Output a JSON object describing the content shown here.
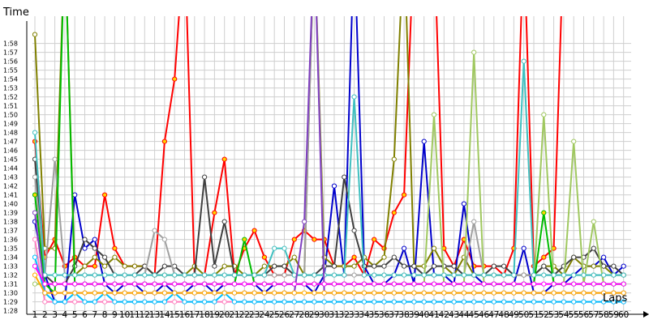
{
  "chart_data": {
    "type": "line",
    "title": "",
    "xlabel": "Laps",
    "ylabel": "Time",
    "x_range": [
      1,
      60
    ],
    "y_range_seconds": [
      88,
      119
    ],
    "y_tick_labels": [
      "1:28",
      "1:29",
      "1:30",
      "1:31",
      "1:32",
      "1:33",
      "1:34",
      "1:35",
      "1:36",
      "1:37",
      "1:38",
      "1:39",
      "1:40",
      "1:41",
      "1:42",
      "1:43",
      "1:44",
      "1:45",
      "1:46",
      "1:47",
      "1:48",
      "1:49",
      "1:50",
      "1:51",
      "1:52",
      "1:53",
      "1:54",
      "1:55",
      "1:56",
      "1:57",
      "1:58"
    ],
    "x_tick_labels": [
      "1",
      "2",
      "3",
      "4",
      "5",
      "6",
      "7",
      "8",
      "9",
      "10",
      "11",
      "12",
      "13",
      "14",
      "15",
      "16",
      "17",
      "18",
      "19",
      "20",
      "21",
      "22",
      "23",
      "24",
      "25",
      "26",
      "27",
      "28",
      "29",
      "30",
      "31",
      "32",
      "33",
      "34",
      "35",
      "36",
      "37",
      "38",
      "39",
      "40",
      "41",
      "42",
      "43",
      "44",
      "45",
      "46",
      "47",
      "48",
      "49",
      "50",
      "51",
      "52",
      "53",
      "54",
      "55",
      "56",
      "57",
      "58",
      "59",
      "60"
    ],
    "grid": true,
    "legend": "none",
    "series": [
      {
        "color": "#ff0000",
        "values": [
          107,
          94,
          96,
          93,
          94,
          93,
          93,
          101,
          95,
          93,
          93,
          93,
          92,
          107,
          114,
          130,
          92,
          92,
          99,
          105,
          92,
          95,
          97,
          94,
          92,
          92,
          96,
          97,
          96,
          96,
          93,
          93,
          94,
          92,
          96,
          95,
          99,
          101,
          130,
          130,
          130,
          95,
          93,
          96,
          93,
          93,
          93,
          92,
          95,
          130,
          93,
          94,
          95,
          130,
          130,
          130,
          130,
          130,
          130,
          130
        ],
        "dot": "#ffd400"
      },
      {
        "color": "#0000cc",
        "values": [
          98,
          92,
          89,
          89,
          101,
          95,
          96,
          91,
          90,
          91,
          91,
          90,
          90,
          91,
          90,
          90,
          91,
          91,
          90,
          91,
          91,
          91,
          91,
          90,
          91,
          91,
          91,
          91,
          90,
          92,
          102,
          92,
          130,
          93,
          91,
          91,
          92,
          95,
          91,
          107,
          92,
          92,
          91,
          100,
          92,
          91,
          91,
          91,
          91,
          95,
          90,
          90,
          91,
          91,
          92,
          93,
          93,
          94,
          92,
          93
        ],
        "dot": "#ffffff"
      },
      {
        "color": "#808000",
        "values": [
          119,
          95,
          95,
          130,
          92,
          93,
          94,
          93,
          94,
          93,
          93,
          93,
          92,
          92,
          92,
          92,
          93,
          92,
          92,
          93,
          93,
          92,
          92,
          93,
          93,
          93,
          94,
          92,
          130,
          94,
          93,
          93,
          93,
          94,
          93,
          94,
          105,
          130,
          93,
          93,
          95,
          93,
          92,
          94,
          92,
          92,
          92,
          92,
          92,
          92,
          92,
          93,
          93,
          92,
          94,
          93,
          93,
          93,
          92,
          92
        ],
        "dot": "#ffffff"
      },
      {
        "color": "#404040",
        "values": [
          105,
          92,
          91,
          91,
          93,
          96,
          95,
          94,
          92,
          92,
          92,
          93,
          92,
          93,
          93,
          92,
          92,
          103,
          93,
          98,
          92,
          92,
          92,
          92,
          93,
          93,
          92,
          92,
          92,
          93,
          93,
          103,
          97,
          93,
          93,
          93,
          94,
          93,
          93,
          92,
          93,
          93,
          93,
          92,
          92,
          92,
          93,
          93,
          92,
          92,
          92,
          93,
          92,
          93,
          94,
          94,
          95,
          93,
          93,
          92
        ],
        "dot": "#ffffff"
      },
      {
        "color": "#a0a0a0",
        "values": [
          103,
          92,
          105,
          92,
          92,
          92,
          92,
          92,
          92,
          92,
          92,
          92,
          97,
          96,
          92,
          92,
          92,
          92,
          92,
          92,
          92,
          92,
          92,
          92,
          92,
          92,
          92,
          92,
          130,
          92,
          92,
          92,
          92,
          92,
          92,
          92,
          92,
          92,
          92,
          92,
          92,
          92,
          92,
          92,
          98,
          92,
          92,
          92,
          92,
          92,
          92,
          92,
          92,
          92,
          92,
          92,
          92,
          92,
          92,
          92
        ],
        "dot": "#ffffff"
      },
      {
        "color": "#a0c860",
        "values": [
          91,
          91,
          91,
          91,
          91,
          91,
          91,
          91,
          91,
          91,
          91,
          91,
          91,
          91,
          91,
          91,
          91,
          91,
          91,
          91,
          91,
          91,
          91,
          91,
          91,
          91,
          91,
          91,
          91,
          91,
          91,
          91,
          91,
          91,
          91,
          91,
          91,
          91,
          91,
          91,
          110,
          91,
          91,
          91,
          117,
          91,
          91,
          91,
          91,
          91,
          91,
          110,
          91,
          91,
          107,
          91,
          98,
          91,
          91,
          91
        ],
        "dot": "#ffffff"
      },
      {
        "color": "#00bb00",
        "values": [
          101,
          91,
          90,
          130,
          91,
          91,
          91,
          91,
          91,
          91,
          91,
          91,
          91,
          91,
          91,
          91,
          91,
          91,
          91,
          91,
          91,
          96,
          91,
          91,
          91,
          91,
          91,
          91,
          91,
          91,
          91,
          91,
          91,
          91,
          91,
          91,
          91,
          91,
          91,
          91,
          91,
          91,
          91,
          91,
          91,
          91,
          91,
          91,
          91,
          91,
          91,
          99,
          91,
          91,
          91,
          91,
          91,
          91,
          91,
          91
        ],
        "dot": "#ffd400"
      },
      {
        "color": "#40c0c0",
        "values": [
          108,
          92,
          92,
          92,
          92,
          92,
          92,
          92,
          92,
          92,
          92,
          92,
          92,
          92,
          92,
          92,
          92,
          92,
          92,
          92,
          92,
          92,
          92,
          92,
          95,
          95,
          92,
          92,
          92,
          92,
          92,
          92,
          112,
          92,
          92,
          92,
          92,
          92,
          92,
          92,
          92,
          92,
          92,
          92,
          92,
          92,
          92,
          92,
          92,
          116,
          92,
          92,
          92,
          92,
          92,
          92,
          92,
          92,
          92,
          92
        ],
        "dot": "#ffffff"
      },
      {
        "color": "#8040c0",
        "values": [
          99,
          90,
          90,
          90,
          90,
          90,
          90,
          90,
          90,
          90,
          90,
          90,
          90,
          90,
          90,
          90,
          90,
          90,
          90,
          90,
          90,
          90,
          90,
          90,
          90,
          90,
          90,
          98,
          130,
          90,
          90,
          90,
          90,
          90,
          90,
          90,
          90,
          90,
          90,
          90,
          90,
          90,
          90,
          90,
          90,
          90,
          90,
          90,
          90,
          90,
          90,
          90,
          90,
          90,
          90,
          90,
          90,
          90,
          90,
          90
        ],
        "dot": "#ffffff"
      },
      {
        "color": "#ff80c0",
        "values": [
          96,
          89,
          89,
          89,
          89,
          89,
          89,
          89,
          89,
          89,
          89,
          89,
          89,
          89,
          89,
          89,
          89,
          89,
          89,
          89,
          89,
          89,
          89,
          89,
          89,
          89,
          89,
          89,
          89,
          89,
          89,
          89,
          89,
          89,
          89,
          89,
          89,
          89,
          89,
          89,
          89,
          89,
          89,
          89,
          89,
          89,
          89,
          89,
          89,
          89,
          89,
          89,
          89,
          89,
          89,
          89,
          89,
          89,
          89,
          89
        ],
        "dot": "#ffffff"
      },
      {
        "color": "#00c0ff",
        "values": [
          94,
          90,
          89,
          89,
          90,
          89,
          89,
          90,
          89,
          89,
          89,
          89,
          89,
          89,
          90,
          89,
          89,
          89,
          89,
          90,
          89,
          89,
          89,
          89,
          89,
          89,
          89,
          89,
          89,
          89,
          89,
          89,
          89,
          89,
          89,
          89,
          89,
          89,
          89,
          89,
          89,
          89,
          89,
          89,
          89,
          89,
          89,
          89,
          89,
          89,
          89,
          89,
          89,
          89,
          89,
          89,
          89,
          89,
          89,
          89
        ],
        "dot": "#ffffff"
      },
      {
        "color": "#ffaa00",
        "values": [
          92,
          90,
          90,
          90,
          90,
          90,
          90,
          90,
          90,
          90,
          90,
          90,
          90,
          90,
          90,
          90,
          90,
          90,
          90,
          90,
          90,
          90,
          90,
          90,
          90,
          90,
          90,
          90,
          90,
          90,
          90,
          90,
          90,
          90,
          90,
          90,
          90,
          90,
          90,
          90,
          90,
          90,
          90,
          90,
          90,
          90,
          90,
          90,
          90,
          90,
          90,
          90,
          90,
          90,
          90,
          90,
          90,
          90,
          90,
          90
        ],
        "dot": "#ffffff"
      },
      {
        "color": "#ff00ff",
        "values": [
          93,
          91,
          91,
          91,
          91,
          91,
          91,
          91,
          91,
          91,
          91,
          91,
          91,
          91,
          91,
          91,
          91,
          91,
          91,
          91,
          91,
          91,
          91,
          91,
          91,
          91,
          91,
          91,
          91,
          91,
          91,
          91,
          91,
          91,
          91,
          91,
          91,
          91,
          91,
          91,
          91,
          91,
          91,
          91,
          91,
          91,
          91,
          91,
          91,
          91,
          91,
          91,
          91,
          91,
          91,
          91,
          91,
          91,
          91,
          91
        ],
        "dot": "#ffffff"
      }
    ]
  }
}
